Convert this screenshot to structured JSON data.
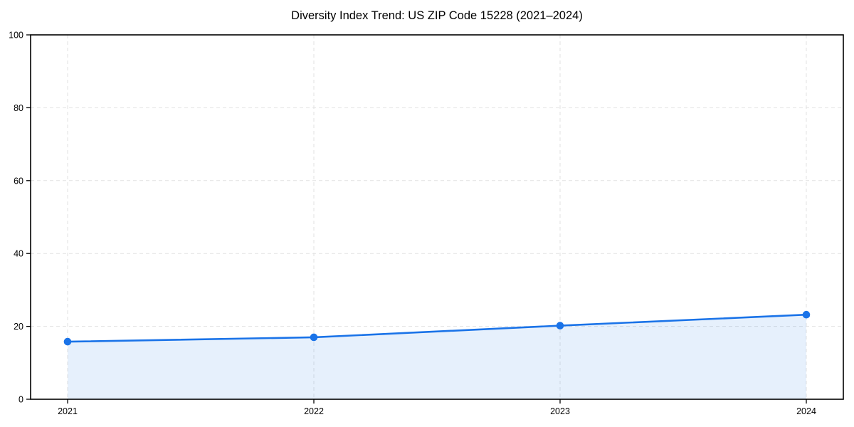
{
  "chart_data": {
    "type": "area",
    "title": "Diversity Index Trend: US ZIP Code 15228 (2021–2024)",
    "categories": [
      "2021",
      "2022",
      "2023",
      "2024"
    ],
    "series": [
      {
        "name": "Diversity Index",
        "values": [
          15.8,
          17.0,
          20.2,
          23.2
        ]
      }
    ],
    "xlabel": "",
    "ylabel": "",
    "ylim": [
      0,
      100
    ],
    "yticks": [
      0,
      20,
      40,
      60,
      80,
      100
    ],
    "grid": true,
    "grid_style": "dashed",
    "legend": false,
    "colors": {
      "line": "#1a73e8",
      "marker": "#1a73e8",
      "fill": "#1a73e8",
      "fill_opacity": 0.11,
      "grid": "#e2e2e2",
      "axis": "#000000",
      "text": "#000000"
    }
  }
}
